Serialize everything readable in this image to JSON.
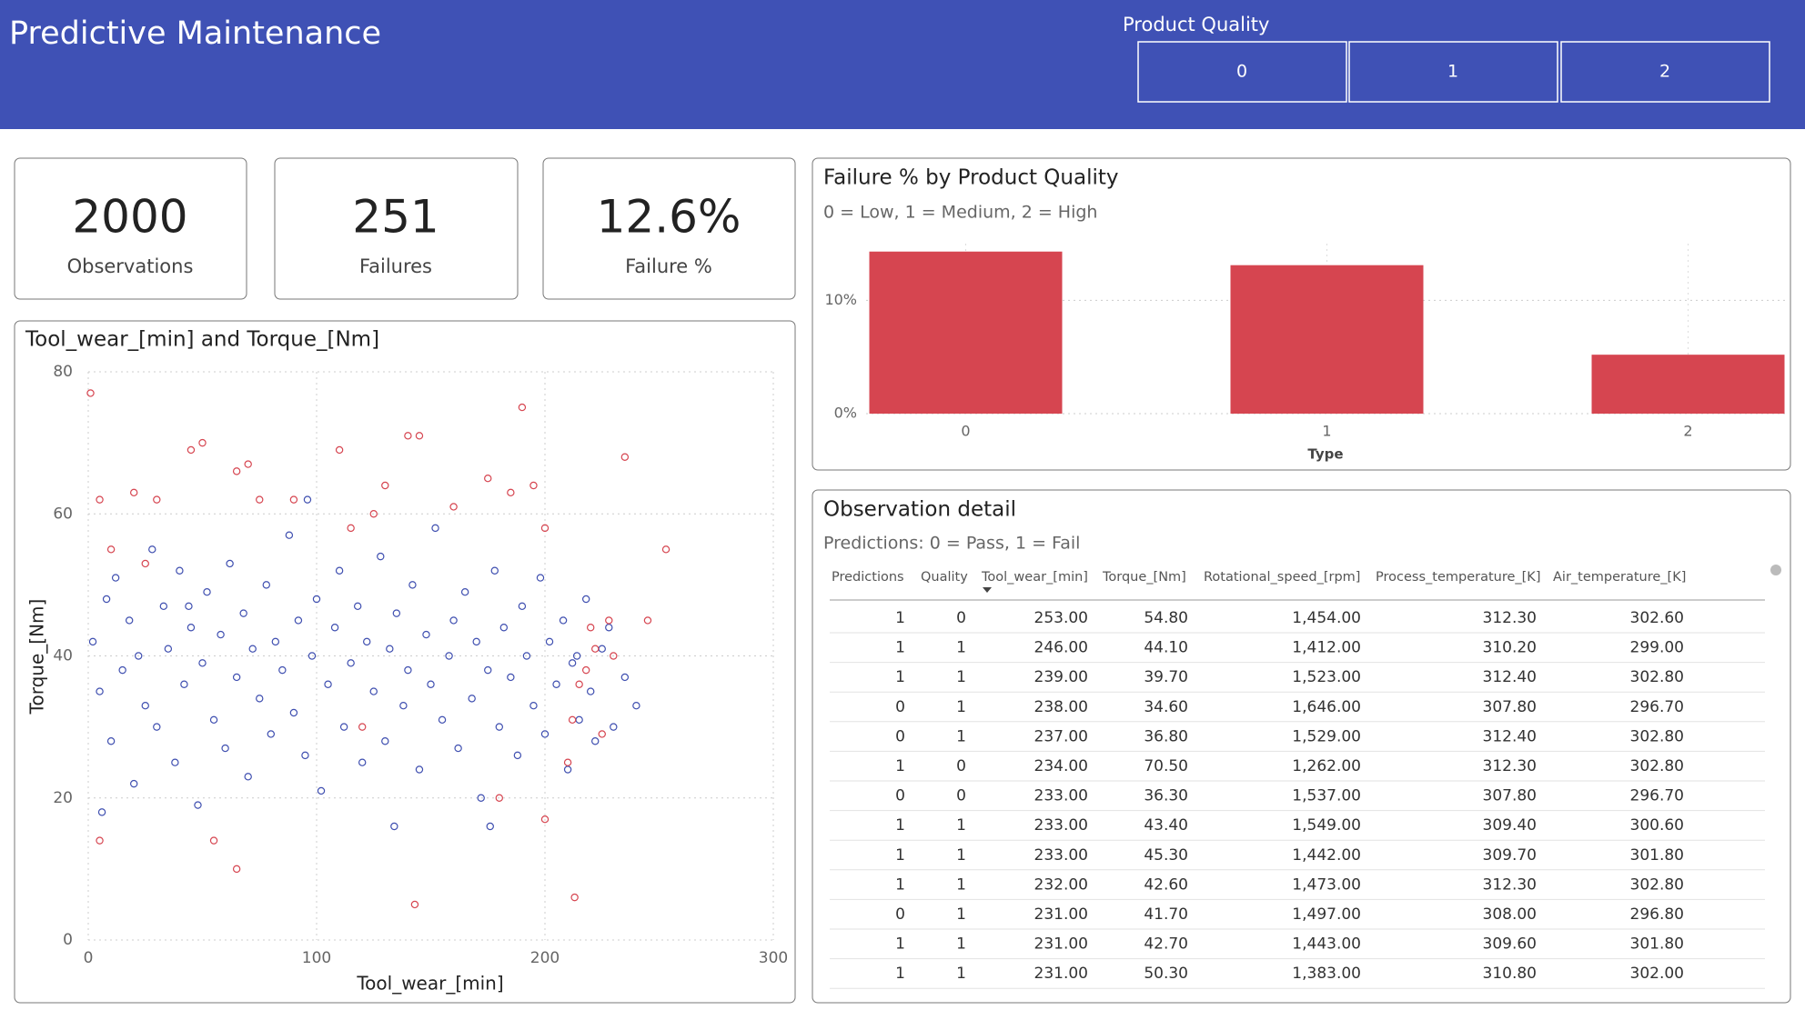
{
  "header": {
    "title": "Predictive Maintenance"
  },
  "slicer": {
    "title": "Product Quality",
    "options": [
      "0",
      "1",
      "2"
    ]
  },
  "kpis": [
    {
      "value": "2000",
      "label": "Observations"
    },
    {
      "value": "251",
      "label": "Failures"
    },
    {
      "value": "12.6%",
      "label": "Failure %"
    }
  ],
  "chart_data": [
    {
      "type": "bar",
      "title": "Failure % by Product Quality",
      "subtitle": "0 = Low, 1 = Medium, 2 = High",
      "x_label": "Type",
      "categories": [
        "0",
        "1",
        "2"
      ],
      "values": [
        14.3,
        13.1,
        5.2
      ],
      "color": "#d64550",
      "ylim": [
        0,
        15
      ],
      "yticks": [
        {
          "value": 0,
          "label": "0%"
        },
        {
          "value": 10,
          "label": "10%"
        }
      ],
      "grid": true
    },
    {
      "type": "scatter",
      "title": "Tool_wear_[min] and Torque_[Nm]",
      "x_label": "Tool_wear_[min]",
      "y_label": "Torque_[Nm]",
      "xlim": [
        0,
        300
      ],
      "ylim": [
        0,
        80
      ],
      "xticks": [
        0,
        100,
        200,
        300
      ],
      "yticks": [
        0,
        20,
        40,
        60,
        80
      ],
      "grid": true,
      "series": [
        {
          "color": "#3f4fb0",
          "x": [
            2,
            5,
            8,
            10,
            12,
            15,
            18,
            20,
            22,
            25,
            28,
            30,
            33,
            35,
            38,
            40,
            42,
            45,
            48,
            50,
            52,
            55,
            58,
            60,
            62,
            65,
            68,
            70,
            72,
            75,
            78,
            80,
            82,
            85,
            88,
            90,
            92,
            95,
            98,
            100,
            102,
            105,
            108,
            110,
            112,
            115,
            118,
            120,
            122,
            125,
            128,
            130,
            132,
            135,
            138,
            140,
            142,
            145,
            148,
            150,
            152,
            155,
            158,
            160,
            162,
            165,
            168,
            170,
            172,
            175,
            178,
            180,
            182,
            185,
            188,
            190,
            192,
            195,
            198,
            200,
            202,
            205,
            208,
            210,
            212,
            215,
            218,
            220,
            222,
            225,
            228,
            230,
            235,
            240,
            6,
            44,
            96,
            134,
            176,
            214
          ],
          "values": [
            42,
            35,
            48,
            28,
            51,
            38,
            45,
            22,
            40,
            33,
            55,
            30,
            47,
            41,
            25,
            52,
            36,
            44,
            19,
            39,
            49,
            31,
            43,
            27,
            53,
            37,
            46,
            23,
            41,
            34,
            50,
            29,
            42,
            38,
            57,
            32,
            45,
            26,
            40,
            48,
            21,
            36,
            44,
            52,
            30,
            39,
            47,
            25,
            42,
            35,
            54,
            28,
            41,
            46,
            33,
            38,
            50,
            24,
            43,
            36,
            58,
            31,
            40,
            45,
            27,
            49,
            34,
            42,
            20,
            38,
            52,
            30,
            44,
            37,
            26,
            47,
            40,
            33,
            51,
            29,
            42,
            36,
            45,
            24,
            39,
            31,
            48,
            35,
            28,
            41,
            44,
            30,
            37,
            33,
            18,
            47,
            62,
            16,
            16,
            40
          ]
        },
        {
          "color": "#d64550",
          "x": [
            1,
            5,
            10,
            20,
            30,
            45,
            50,
            55,
            65,
            70,
            75,
            90,
            110,
            115,
            120,
            125,
            130,
            140,
            145,
            143,
            160,
            175,
            180,
            185,
            190,
            195,
            200,
            213,
            210,
            212,
            215,
            218,
            220,
            222,
            225,
            228,
            230,
            235,
            245,
            253,
            65,
            25,
            5,
            200
          ],
          "values": [
            77,
            62,
            55,
            63,
            62,
            69,
            70,
            14,
            66,
            67,
            62,
            62,
            69,
            58,
            30,
            60,
            64,
            71,
            71,
            5,
            61,
            65,
            20,
            63,
            75,
            64,
            58,
            6,
            25,
            31,
            36,
            38,
            44,
            41,
            29,
            45,
            40,
            68,
            45,
            55,
            10,
            53,
            14,
            17
          ]
        }
      ]
    }
  ],
  "table": {
    "title": "Observation detail",
    "subtitle": "Predictions: 0 = Pass, 1 = Fail",
    "columns": [
      "Predictions",
      "Quality",
      "Tool_wear_[min]",
      "Torque_[Nm]",
      "Rotational_speed_[rpm]",
      "Process_temperature_[K]",
      "Air_temperature_[K]"
    ],
    "rows": [
      [
        "1",
        "0",
        "253.00",
        "54.80",
        "1,454.00",
        "312.30",
        "302.60"
      ],
      [
        "1",
        "1",
        "246.00",
        "44.10",
        "1,412.00",
        "310.20",
        "299.00"
      ],
      [
        "1",
        "1",
        "239.00",
        "39.70",
        "1,523.00",
        "312.40",
        "302.80"
      ],
      [
        "0",
        "1",
        "238.00",
        "34.60",
        "1,646.00",
        "307.80",
        "296.70"
      ],
      [
        "0",
        "1",
        "237.00",
        "36.80",
        "1,529.00",
        "312.40",
        "302.80"
      ],
      [
        "1",
        "0",
        "234.00",
        "70.50",
        "1,262.00",
        "312.30",
        "302.80"
      ],
      [
        "0",
        "0",
        "233.00",
        "36.30",
        "1,537.00",
        "307.80",
        "296.70"
      ],
      [
        "1",
        "1",
        "233.00",
        "43.40",
        "1,549.00",
        "309.40",
        "300.60"
      ],
      [
        "1",
        "1",
        "233.00",
        "45.30",
        "1,442.00",
        "309.70",
        "301.80"
      ],
      [
        "1",
        "1",
        "232.00",
        "42.60",
        "1,473.00",
        "312.30",
        "302.80"
      ],
      [
        "0",
        "1",
        "231.00",
        "41.70",
        "1,497.00",
        "308.00",
        "296.80"
      ],
      [
        "1",
        "1",
        "231.00",
        "42.70",
        "1,443.00",
        "309.60",
        "301.80"
      ],
      [
        "1",
        "1",
        "231.00",
        "50.30",
        "1,383.00",
        "310.80",
        "302.00"
      ]
    ]
  }
}
